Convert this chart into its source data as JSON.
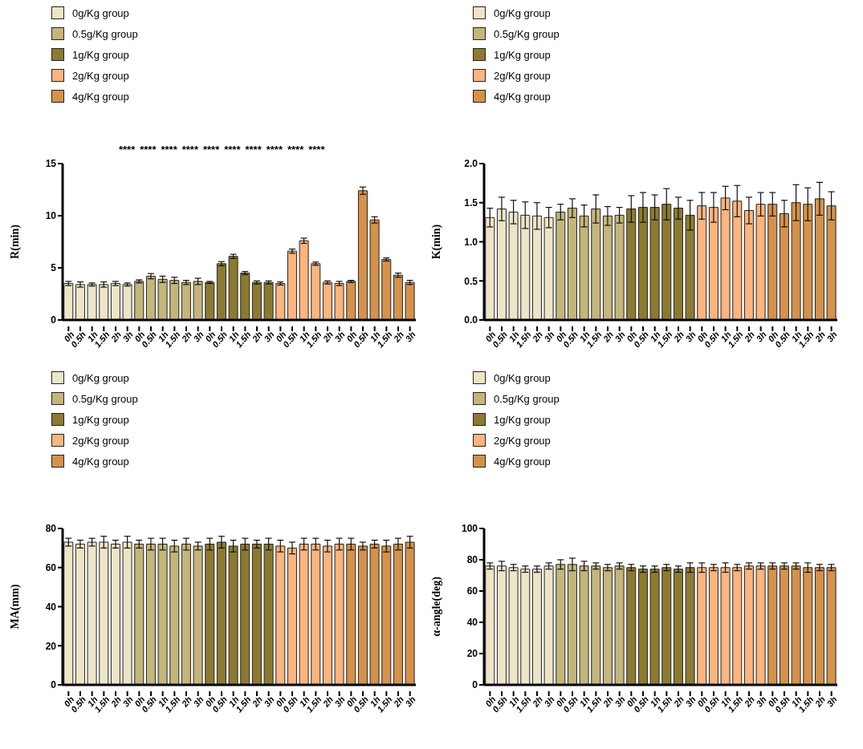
{
  "chart_data": [
    {
      "type": "bar",
      "ylabel": "R(min)",
      "legend": "top left",
      "ylim": [
        0,
        15
      ],
      "yticks": [
        0,
        5,
        10,
        15
      ],
      "categories": [
        "0h",
        "0.5h",
        "1h",
        "1.5h",
        "2h",
        "3h",
        "0h",
        "0.5h",
        "1h",
        "1.5h",
        "2h",
        "3h",
        "0h",
        "0.5h",
        "1h",
        "1.5h",
        "2h",
        "3h",
        "0h",
        "0.5h",
        "1h",
        "1.5h",
        "2h",
        "3h",
        "0h",
        "0.5h",
        "1h",
        "1.5h",
        "2h",
        "3h"
      ],
      "series": [
        {
          "name": "0g/Kg group",
          "color": "#ede5c6",
          "values": [
            3.5,
            3.4,
            3.4,
            3.4,
            3.5,
            3.4,
            null,
            null,
            null,
            null,
            null,
            null,
            null,
            null,
            null,
            null,
            null,
            null,
            null,
            null,
            null,
            null,
            null,
            null,
            null,
            null,
            null,
            null,
            null,
            null
          ],
          "errors": [
            0.2,
            0.25,
            0.15,
            0.25,
            0.2,
            0.15,
            null,
            null,
            null,
            null,
            null,
            null,
            null,
            null,
            null,
            null,
            null,
            null,
            null,
            null,
            null,
            null,
            null,
            null,
            null,
            null,
            null,
            null,
            null,
            null
          ]
        },
        {
          "name": "0.5g/Kg group",
          "color": "#c4b57a",
          "values": [
            null,
            null,
            null,
            null,
            null,
            null,
            3.7,
            4.2,
            3.9,
            3.8,
            3.6,
            3.7,
            null,
            null,
            null,
            null,
            null,
            null,
            null,
            null,
            null,
            null,
            null,
            null,
            null,
            null,
            null,
            null,
            null,
            null
          ],
          "errors": [
            null,
            null,
            null,
            null,
            null,
            null,
            0.15,
            0.25,
            0.3,
            0.3,
            0.2,
            0.3,
            null,
            null,
            null,
            null,
            null,
            null,
            null,
            null,
            null,
            null,
            null,
            null,
            null,
            null,
            null,
            null,
            null,
            null
          ]
        },
        {
          "name": "1g/Kg group",
          "color": "#8c7a30",
          "values": [
            null,
            null,
            null,
            null,
            null,
            null,
            null,
            null,
            null,
            null,
            null,
            null,
            3.6,
            5.4,
            6.1,
            4.5,
            3.6,
            3.6,
            null,
            null,
            null,
            null,
            null,
            null,
            null,
            null,
            null,
            null,
            null,
            null
          ],
          "errors": [
            null,
            null,
            null,
            null,
            null,
            null,
            null,
            null,
            null,
            null,
            null,
            null,
            0.1,
            0.2,
            0.2,
            0.15,
            0.15,
            0.15,
            null,
            null,
            null,
            null,
            null,
            null,
            null,
            null,
            null,
            null,
            null,
            null
          ]
        },
        {
          "name": "2g/Kg group",
          "color": "#fdb47d",
          "values": [
            null,
            null,
            null,
            null,
            null,
            null,
            null,
            null,
            null,
            null,
            null,
            null,
            null,
            null,
            null,
            null,
            null,
            null,
            3.5,
            6.6,
            7.6,
            5.4,
            3.6,
            3.5,
            null,
            null,
            null,
            null,
            null,
            null
          ],
          "errors": [
            null,
            null,
            null,
            null,
            null,
            null,
            null,
            null,
            null,
            null,
            null,
            null,
            null,
            null,
            null,
            null,
            null,
            null,
            0.15,
            0.2,
            0.25,
            0.15,
            0.15,
            0.2,
            null,
            null,
            null,
            null,
            null,
            null
          ]
        },
        {
          "name": "4g/Kg group",
          "color": "#d4924a",
          "values": [
            null,
            null,
            null,
            null,
            null,
            null,
            null,
            null,
            null,
            null,
            null,
            null,
            null,
            null,
            null,
            null,
            null,
            null,
            null,
            null,
            null,
            null,
            null,
            null,
            3.7,
            12.4,
            9.6,
            5.8,
            4.3,
            3.6
          ],
          "errors": [
            null,
            null,
            null,
            null,
            null,
            null,
            null,
            null,
            null,
            null,
            null,
            null,
            null,
            null,
            null,
            null,
            null,
            null,
            null,
            null,
            null,
            null,
            null,
            null,
            0.1,
            0.35,
            0.3,
            0.15,
            0.2,
            0.2
          ]
        }
      ],
      "annotations": [
        "****",
        "****",
        "****",
        "****",
        "****",
        "****",
        "****",
        "****",
        "****",
        "****"
      ]
    },
    {
      "type": "bar",
      "ylabel": "K(min)",
      "legend": "top left",
      "ylim": [
        0,
        2
      ],
      "yticks": [
        {
          "value": 0,
          "label": "0.0"
        },
        {
          "value": 0.5,
          "label": "0.5"
        },
        {
          "value": 1,
          "label": "1.0"
        },
        {
          "value": 1.5,
          "label": "1.5"
        },
        {
          "value": 2,
          "label": "2.0"
        }
      ],
      "categories": [
        "0h",
        "0.5h",
        "1h",
        "1.5h",
        "2h",
        "3h",
        "0h",
        "0.5h",
        "1h",
        "1.5h",
        "2h",
        "3h",
        "0h",
        "0.5h",
        "1h",
        "1.5h",
        "2h",
        "3h",
        "0h",
        "0.5h",
        "1h",
        "1.5h",
        "2h",
        "3h",
        "0h",
        "0.5h",
        "1h",
        "1.5h",
        "2h",
        "3h"
      ],
      "series": [
        {
          "name": "0g/Kg group",
          "color": "#ede5c6",
          "values": [
            1.31,
            1.42,
            1.38,
            1.34,
            1.33,
            1.31,
            null,
            null,
            null,
            null,
            null,
            null,
            null,
            null,
            null,
            null,
            null,
            null,
            null,
            null,
            null,
            null,
            null,
            null,
            null,
            null,
            null,
            null,
            null,
            null
          ],
          "errors": [
            0.12,
            0.15,
            0.15,
            0.17,
            0.17,
            0.13,
            null,
            null,
            null,
            null,
            null,
            null,
            null,
            null,
            null,
            null,
            null,
            null,
            null,
            null,
            null,
            null,
            null,
            null,
            null,
            null,
            null,
            null,
            null,
            null
          ]
        },
        {
          "name": "0.5g/Kg group",
          "color": "#c4b57a",
          "values": [
            null,
            null,
            null,
            null,
            null,
            null,
            1.38,
            1.43,
            1.33,
            1.42,
            1.33,
            1.34,
            null,
            null,
            null,
            null,
            null,
            null,
            null,
            null,
            null,
            null,
            null,
            null,
            null,
            null,
            null,
            null,
            null,
            null
          ],
          "errors": [
            null,
            null,
            null,
            null,
            null,
            null,
            0.1,
            0.12,
            0.14,
            0.18,
            0.12,
            0.1,
            null,
            null,
            null,
            null,
            null,
            null,
            null,
            null,
            null,
            null,
            null,
            null,
            null,
            null,
            null,
            null,
            null,
            null
          ]
        },
        {
          "name": "1g/Kg group",
          "color": "#8c7a30",
          "values": [
            null,
            null,
            null,
            null,
            null,
            null,
            null,
            null,
            null,
            null,
            null,
            null,
            1.42,
            1.44,
            1.44,
            1.48,
            1.43,
            1.34,
            null,
            null,
            null,
            null,
            null,
            null,
            null,
            null,
            null,
            null,
            null,
            null
          ],
          "errors": [
            null,
            null,
            null,
            null,
            null,
            null,
            null,
            null,
            null,
            null,
            null,
            null,
            0.17,
            0.19,
            0.16,
            0.2,
            0.14,
            0.19,
            null,
            null,
            null,
            null,
            null,
            null,
            null,
            null,
            null,
            null,
            null,
            null
          ]
        },
        {
          "name": "2g/Kg group",
          "color": "#fdb47d",
          "values": [
            null,
            null,
            null,
            null,
            null,
            null,
            null,
            null,
            null,
            null,
            null,
            null,
            null,
            null,
            null,
            null,
            null,
            null,
            1.46,
            1.44,
            1.56,
            1.52,
            1.4,
            1.48,
            null,
            null,
            null,
            null,
            null,
            null
          ],
          "errors": [
            null,
            null,
            null,
            null,
            null,
            null,
            null,
            null,
            null,
            null,
            null,
            null,
            null,
            null,
            null,
            null,
            null,
            null,
            0.17,
            0.19,
            0.15,
            0.2,
            0.17,
            0.15,
            null,
            null,
            null,
            null,
            null,
            null
          ]
        },
        {
          "name": "4g/Kg group",
          "color": "#d4924a",
          "values": [
            null,
            null,
            null,
            null,
            null,
            null,
            null,
            null,
            null,
            null,
            null,
            null,
            null,
            null,
            null,
            null,
            null,
            null,
            null,
            null,
            null,
            null,
            null,
            null,
            1.48,
            1.36,
            1.5,
            1.48,
            1.55,
            1.46
          ],
          "errors": [
            null,
            null,
            null,
            null,
            null,
            null,
            null,
            null,
            null,
            null,
            null,
            null,
            null,
            null,
            null,
            null,
            null,
            null,
            null,
            null,
            null,
            null,
            null,
            null,
            0.15,
            0.17,
            0.23,
            0.21,
            0.21,
            0.18
          ]
        }
      ]
    },
    {
      "type": "bar",
      "ylabel": "MA(mm)",
      "legend": "top left",
      "ylim": [
        0,
        80
      ],
      "yticks": [
        0,
        20,
        40,
        60,
        80
      ],
      "categories": [
        "0h",
        "0.5h",
        "1h",
        "1.5h",
        "2h",
        "3h",
        "0h",
        "0.5h",
        "1h",
        "1.5h",
        "2h",
        "3h",
        "0h",
        "0.5h",
        "1h",
        "1.5h",
        "2h",
        "3h",
        "0h",
        "0.5h",
        "1h",
        "1.5h",
        "2h",
        "3h",
        "0h",
        "0.5h",
        "1h",
        "1.5h",
        "2h",
        "3h"
      ],
      "series": [
        {
          "name": "0g/Kg group",
          "color": "#ede5c6",
          "values": [
            73,
            72,
            73,
            73,
            72,
            73,
            null,
            null,
            null,
            null,
            null,
            null,
            null,
            null,
            null,
            null,
            null,
            null,
            null,
            null,
            null,
            null,
            null,
            null,
            null,
            null,
            null,
            null,
            null,
            null
          ],
          "errors": [
            2,
            2,
            2,
            3,
            2,
            3,
            null,
            null,
            null,
            null,
            null,
            null,
            null,
            null,
            null,
            null,
            null,
            null,
            null,
            null,
            null,
            null,
            null,
            null,
            null,
            null,
            null,
            null,
            null,
            null
          ]
        },
        {
          "name": "0.5g/Kg group",
          "color": "#c4b57a",
          "values": [
            null,
            null,
            null,
            null,
            null,
            null,
            72,
            72,
            72,
            71,
            72,
            71,
            null,
            null,
            null,
            null,
            null,
            null,
            null,
            null,
            null,
            null,
            null,
            null,
            null,
            null,
            null,
            null,
            null,
            null
          ],
          "errors": [
            null,
            null,
            null,
            null,
            null,
            null,
            2,
            3,
            3,
            3,
            3,
            2,
            null,
            null,
            null,
            null,
            null,
            null,
            null,
            null,
            null,
            null,
            null,
            null,
            null,
            null,
            null,
            null,
            null,
            null
          ]
        },
        {
          "name": "1g/Kg group",
          "color": "#8c7a30",
          "values": [
            null,
            null,
            null,
            null,
            null,
            null,
            null,
            null,
            null,
            null,
            null,
            null,
            72,
            73,
            71,
            72,
            72,
            72,
            null,
            null,
            null,
            null,
            null,
            null,
            null,
            null,
            null,
            null,
            null,
            null
          ],
          "errors": [
            null,
            null,
            null,
            null,
            null,
            null,
            null,
            null,
            null,
            null,
            null,
            null,
            3,
            3,
            3,
            3,
            2,
            3,
            null,
            null,
            null,
            null,
            null,
            null,
            null,
            null,
            null,
            null,
            null,
            null
          ]
        },
        {
          "name": "2g/Kg group",
          "color": "#fdb47d",
          "values": [
            null,
            null,
            null,
            null,
            null,
            null,
            null,
            null,
            null,
            null,
            null,
            null,
            null,
            null,
            null,
            null,
            null,
            null,
            71,
            70,
            72,
            72,
            71,
            72,
            null,
            null,
            null,
            null,
            null,
            null
          ],
          "errors": [
            null,
            null,
            null,
            null,
            null,
            null,
            null,
            null,
            null,
            null,
            null,
            null,
            null,
            null,
            null,
            null,
            null,
            null,
            3,
            3,
            3,
            3,
            3,
            3,
            null,
            null,
            null,
            null,
            null,
            null
          ]
        },
        {
          "name": "4g/Kg group",
          "color": "#d4924a",
          "values": [
            null,
            null,
            null,
            null,
            null,
            null,
            null,
            null,
            null,
            null,
            null,
            null,
            null,
            null,
            null,
            null,
            null,
            null,
            null,
            null,
            null,
            null,
            null,
            null,
            72,
            71,
            72,
            71,
            72,
            73
          ],
          "errors": [
            null,
            null,
            null,
            null,
            null,
            null,
            null,
            null,
            null,
            null,
            null,
            null,
            null,
            null,
            null,
            null,
            null,
            null,
            null,
            null,
            null,
            null,
            null,
            null,
            3,
            2,
            2,
            3,
            3,
            3
          ]
        }
      ]
    },
    {
      "type": "bar",
      "ylabel": "α-angle(deg)",
      "legend": "top left",
      "ylim": [
        0,
        100
      ],
      "yticks": [
        0,
        20,
        40,
        60,
        80,
        100
      ],
      "categories": [
        "0h",
        "0.5h",
        "1h",
        "1.5h",
        "2h",
        "3h",
        "0h",
        "0.5h",
        "1h",
        "1.5h",
        "2h",
        "3h",
        "0h",
        "0.5h",
        "1h",
        "1.5h",
        "2h",
        "3h",
        "0h",
        "0.5h",
        "1h",
        "1.5h",
        "2h",
        "3h",
        "0h",
        "0.5h",
        "1h",
        "1.5h",
        "2h",
        "3h"
      ],
      "series": [
        {
          "name": "0g/Kg group",
          "color": "#ede5c6",
          "values": [
            76,
            76,
            75,
            74,
            74,
            76,
            null,
            null,
            null,
            null,
            null,
            null,
            null,
            null,
            null,
            null,
            null,
            null,
            null,
            null,
            null,
            null,
            null,
            null,
            null,
            null,
            null,
            null,
            null,
            null
          ],
          "errors": [
            2,
            3,
            2,
            2,
            2,
            2,
            null,
            null,
            null,
            null,
            null,
            null,
            null,
            null,
            null,
            null,
            null,
            null,
            null,
            null,
            null,
            null,
            null,
            null,
            null,
            null,
            null,
            null,
            null,
            null
          ]
        },
        {
          "name": "0.5g/Kg group",
          "color": "#c4b57a",
          "values": [
            null,
            null,
            null,
            null,
            null,
            null,
            77,
            77,
            76,
            76,
            75,
            76,
            null,
            null,
            null,
            null,
            null,
            null,
            null,
            null,
            null,
            null,
            null,
            null,
            null,
            null,
            null,
            null,
            null,
            null
          ],
          "errors": [
            null,
            null,
            null,
            null,
            null,
            null,
            3,
            4,
            3,
            2,
            2,
            2,
            null,
            null,
            null,
            null,
            null,
            null,
            null,
            null,
            null,
            null,
            null,
            null,
            null,
            null,
            null,
            null,
            null,
            null
          ]
        },
        {
          "name": "1g/Kg group",
          "color": "#8c7a30",
          "values": [
            null,
            null,
            null,
            null,
            null,
            null,
            null,
            null,
            null,
            null,
            null,
            null,
            75,
            74,
            74,
            75,
            74,
            75,
            null,
            null,
            null,
            null,
            null,
            null,
            null,
            null,
            null,
            null,
            null,
            null
          ],
          "errors": [
            null,
            null,
            null,
            null,
            null,
            null,
            null,
            null,
            null,
            null,
            null,
            null,
            2,
            2,
            2,
            2,
            2,
            3,
            null,
            null,
            null,
            null,
            null,
            null,
            null,
            null,
            null,
            null,
            null,
            null
          ]
        },
        {
          "name": "2g/Kg group",
          "color": "#fdb47d",
          "values": [
            null,
            null,
            null,
            null,
            null,
            null,
            null,
            null,
            null,
            null,
            null,
            null,
            null,
            null,
            null,
            null,
            null,
            null,
            75,
            75,
            75,
            75,
            76,
            76,
            null,
            null,
            null,
            null,
            null,
            null
          ],
          "errors": [
            null,
            null,
            null,
            null,
            null,
            null,
            null,
            null,
            null,
            null,
            null,
            null,
            null,
            null,
            null,
            null,
            null,
            null,
            3,
            2,
            3,
            2,
            2,
            2,
            null,
            null,
            null,
            null,
            null,
            null
          ]
        },
        {
          "name": "4g/Kg group",
          "color": "#d4924a",
          "values": [
            null,
            null,
            null,
            null,
            null,
            null,
            null,
            null,
            null,
            null,
            null,
            null,
            null,
            null,
            null,
            null,
            null,
            null,
            null,
            null,
            null,
            null,
            null,
            null,
            76,
            76,
            76,
            75,
            75,
            75
          ],
          "errors": [
            null,
            null,
            null,
            null,
            null,
            null,
            null,
            null,
            null,
            null,
            null,
            null,
            null,
            null,
            null,
            null,
            null,
            null,
            null,
            null,
            null,
            null,
            null,
            null,
            2,
            2,
            2,
            3,
            2,
            2
          ]
        }
      ]
    }
  ]
}
